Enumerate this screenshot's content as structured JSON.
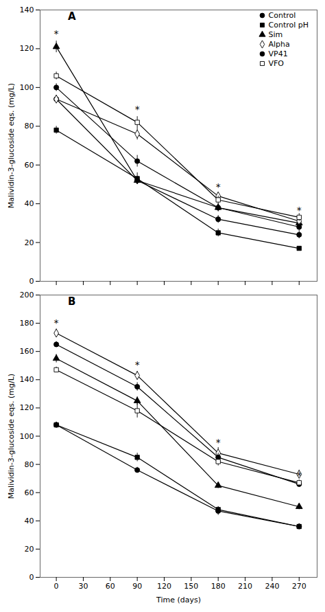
{
  "chart_data": [
    {
      "type": "line",
      "title": "A",
      "x": [
        0,
        90,
        180,
        270
      ],
      "xlim": [
        -18,
        290
      ],
      "xticks": [
        0,
        30,
        60,
        90,
        120,
        150,
        180,
        210,
        240,
        270
      ],
      "ylabel": "Malividin-3-glucoside eqs. (mg/L)",
      "ylim": [
        0,
        140
      ],
      "yticks": [
        0,
        20,
        40,
        60,
        80,
        100,
        120,
        140
      ],
      "tick_labels": "y",
      "legend": "upper right",
      "series": [
        {
          "name": "Control",
          "color": "#000000",
          "marker": "circle",
          "values": [
            94,
            52,
            32,
            24
          ],
          "errors": [
            2,
            2,
            2,
            2
          ]
        },
        {
          "name": "Control pH",
          "color": "#000000",
          "marker": "square",
          "values": [
            78,
            53,
            25,
            17
          ],
          "errors": [
            2,
            3,
            2,
            1
          ]
        },
        {
          "name": "Sim",
          "color": "#000000",
          "marker": "triangle",
          "values": [
            121,
            52,
            38,
            30
          ],
          "errors": [
            3,
            2,
            2,
            2
          ]
        },
        {
          "name": "Alpha",
          "color": "#000000",
          "marker": "diamond_open",
          "values": [
            94,
            76,
            44,
            31
          ],
          "errors": [
            2,
            3,
            2,
            2
          ]
        },
        {
          "name": "VP41",
          "color": "#000000",
          "marker": "circle",
          "values": [
            100,
            62,
            38,
            28
          ],
          "errors": [
            2,
            3,
            2,
            2
          ]
        },
        {
          "name": "VFO",
          "color": "#000000",
          "marker": "square_open",
          "values": [
            106,
            82,
            42,
            33
          ],
          "errors": [
            2,
            3,
            2,
            2
          ]
        }
      ],
      "annotations": [
        {
          "text": "*",
          "x": 0,
          "y": 126
        },
        {
          "text": "*",
          "x": 90,
          "y": 87
        },
        {
          "text": "*",
          "x": 180,
          "y": 47
        },
        {
          "text": "*",
          "x": 270,
          "y": 35
        }
      ]
    },
    {
      "type": "line",
      "title": "B",
      "x": [
        0,
        90,
        180,
        270
      ],
      "xlabel": "Time (days)",
      "xlim": [
        -18,
        290
      ],
      "xticks": [
        0,
        30,
        60,
        90,
        120,
        150,
        180,
        210,
        240,
        270
      ],
      "ylabel": "Malividin-3-glucoside eqs. (mg/L)",
      "ylim": [
        0,
        200
      ],
      "yticks": [
        0,
        20,
        40,
        60,
        80,
        100,
        120,
        140,
        160,
        180,
        200
      ],
      "series": [
        {
          "name": "Control",
          "color": "#000000",
          "marker": "circle",
          "values": [
            108,
            76,
            47,
            36
          ],
          "errors": [
            2,
            2,
            3,
            2
          ]
        },
        {
          "name": "Control pH",
          "color": "#000000",
          "marker": "square",
          "values": [
            108,
            85,
            48,
            36
          ],
          "errors": [
            2,
            3,
            2,
            2
          ]
        },
        {
          "name": "Sim",
          "color": "#000000",
          "marker": "triangle",
          "values": [
            155,
            125,
            65,
            50
          ],
          "errors": [
            3,
            3,
            2,
            2
          ]
        },
        {
          "name": "Alpha",
          "color": "#000000",
          "marker": "diamond_open",
          "values": [
            173,
            143,
            88,
            73
          ],
          "errors": [
            3,
            3,
            4,
            3
          ]
        },
        {
          "name": "VP41",
          "color": "#000000",
          "marker": "circle",
          "values": [
            165,
            135,
            85,
            66
          ],
          "errors": [
            2,
            3,
            3,
            2
          ]
        },
        {
          "name": "VFO",
          "color": "#000000",
          "marker": "square_open",
          "values": [
            147,
            118,
            82,
            67
          ],
          "errors": [
            2,
            5,
            3,
            2
          ]
        }
      ],
      "annotations": [
        {
          "text": "*",
          "x": 0,
          "y": 178
        },
        {
          "text": "*",
          "x": 90,
          "y": 148
        },
        {
          "text": "*",
          "x": 180,
          "y": 93
        },
        {
          "text": "*",
          "x": 270,
          "y": 70
        }
      ]
    }
  ]
}
